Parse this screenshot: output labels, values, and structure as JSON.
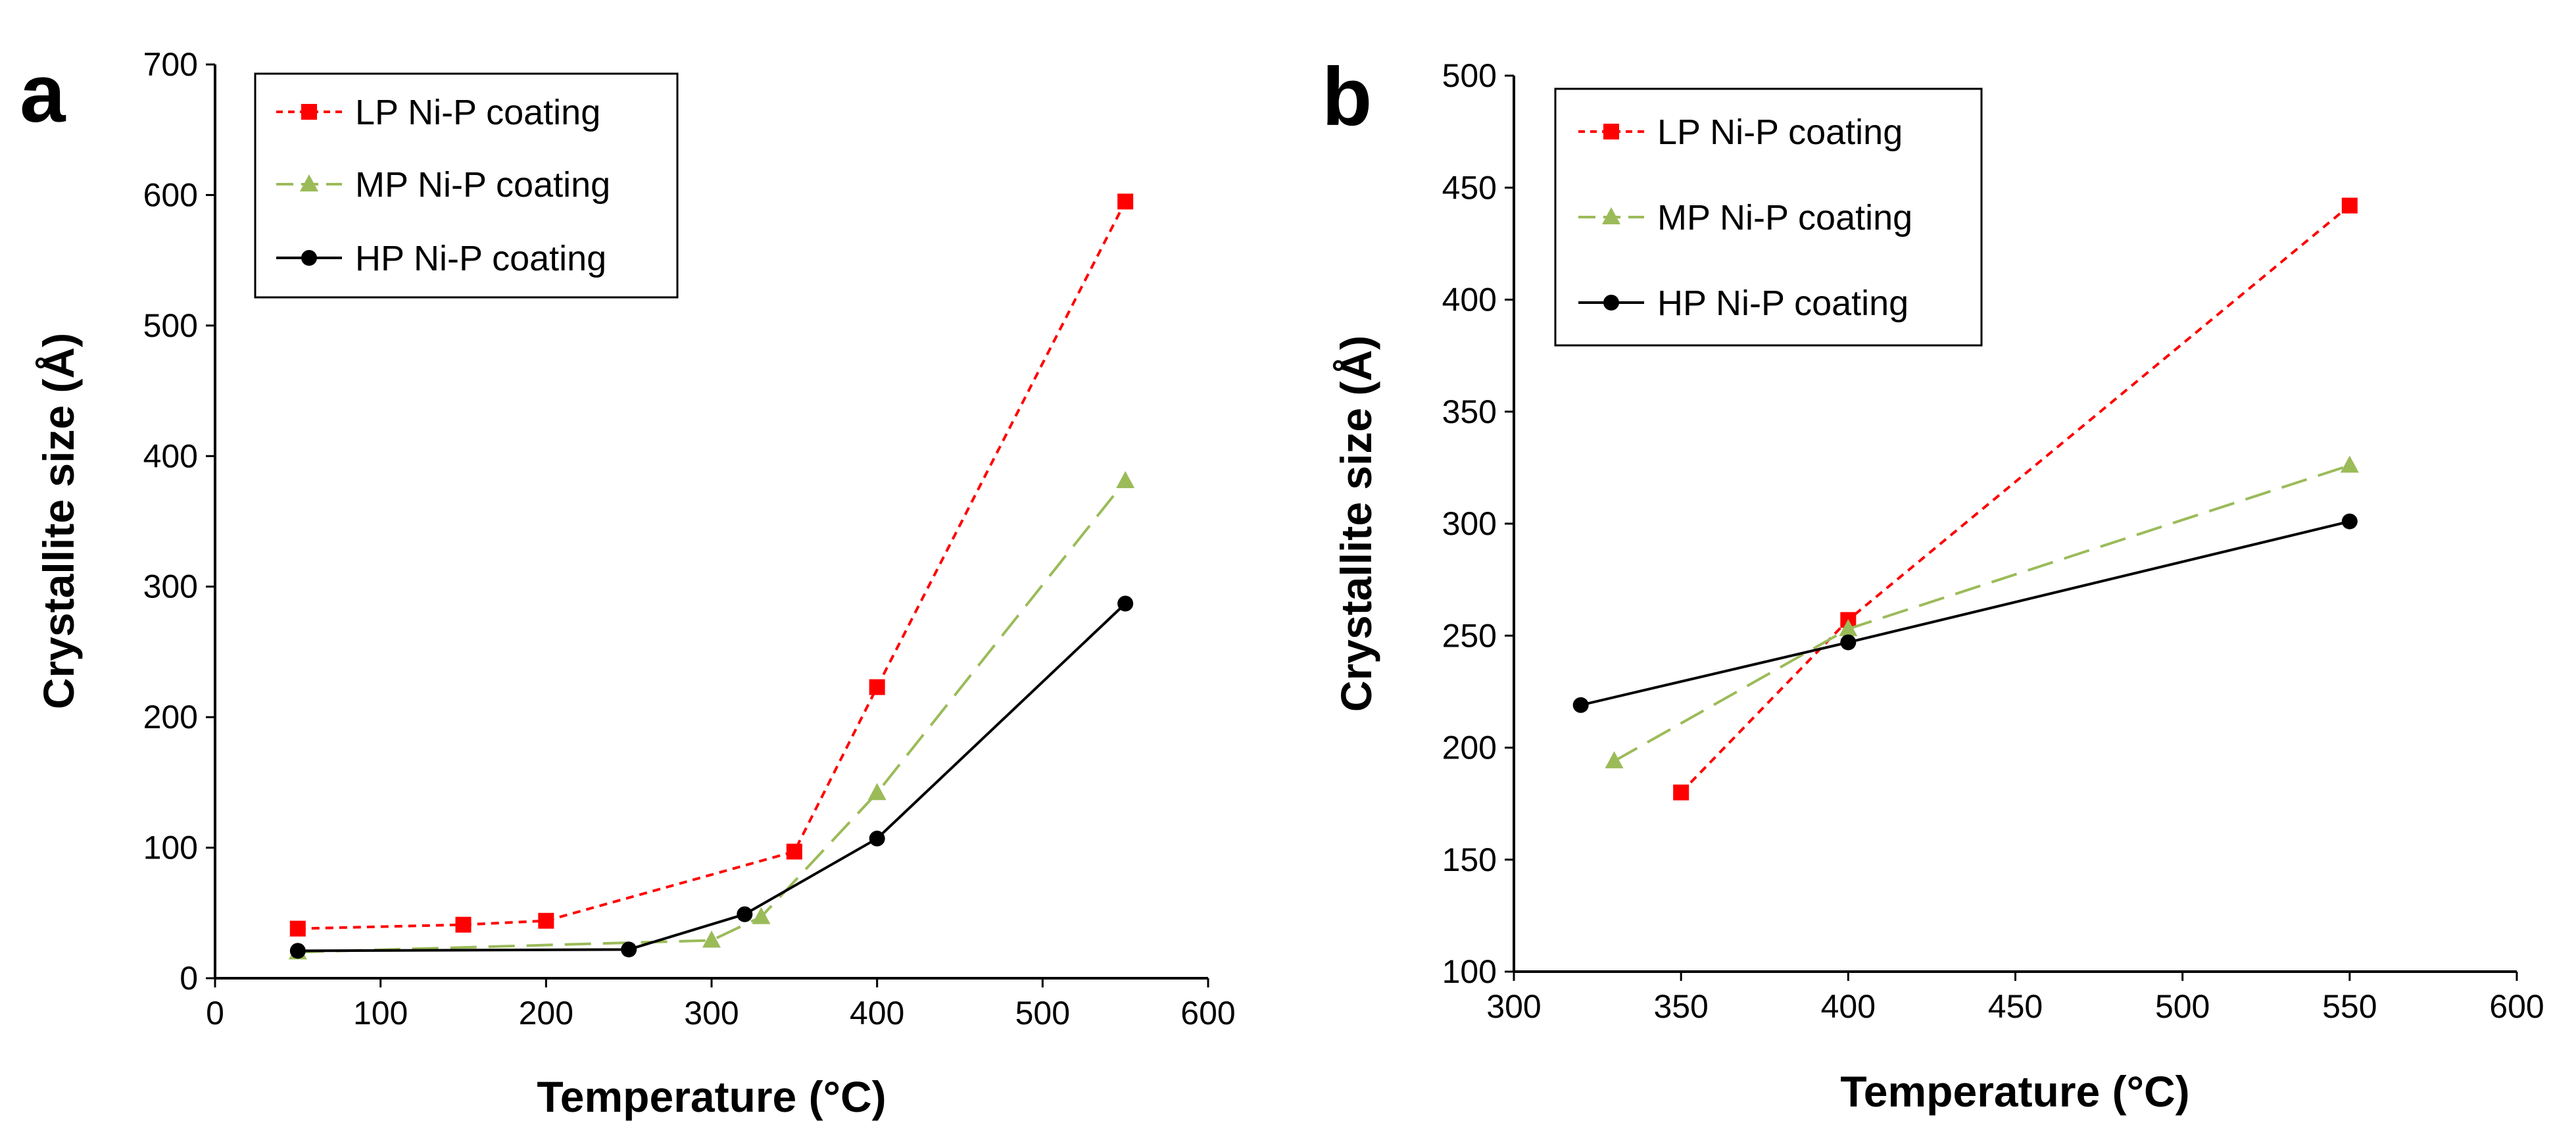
{
  "chart_data": [
    {
      "panel": "a",
      "type": "line",
      "xlabel": "Temperature (°C)",
      "ylabel": "Crystallite size (Å)",
      "xlim": [
        0,
        600
      ],
      "ylim": [
        0,
        700
      ],
      "xticks": [
        0,
        100,
        200,
        300,
        400,
        500,
        600
      ],
      "yticks": [
        0,
        100,
        200,
        300,
        400,
        500,
        600,
        700
      ],
      "legend_position": "top-left",
      "series": [
        {
          "name": "LP Ni-P coating",
          "color": "#FF0000",
          "marker": "square",
          "dash": "dotted",
          "x": [
            50,
            150,
            200,
            350,
            400,
            550
          ],
          "y": [
            38,
            41,
            44,
            97,
            223,
            595
          ]
        },
        {
          "name": "MP Ni-P coating",
          "color": "#9BBB59",
          "marker": "triangle",
          "dash": "dashed",
          "x": [
            50,
            300,
            330,
            400,
            550
          ],
          "y": [
            20,
            29,
            47,
            142,
            381
          ]
        },
        {
          "name": "HP Ni-P coating",
          "color": "#000000",
          "marker": "circle",
          "dash": "solid",
          "x": [
            50,
            250,
            320,
            400,
            550
          ],
          "y": [
            21,
            22,
            49,
            107,
            287
          ]
        }
      ]
    },
    {
      "panel": "b",
      "type": "line",
      "xlabel": "Temperature (°C)",
      "ylabel": "Crystallite size (Å)",
      "xlim": [
        300,
        600
      ],
      "ylim": [
        100,
        500
      ],
      "xticks": [
        300,
        350,
        400,
        450,
        500,
        550,
        600
      ],
      "yticks": [
        100,
        150,
        200,
        250,
        300,
        350,
        400,
        450,
        500
      ],
      "legend_position": "top-left",
      "series": [
        {
          "name": "LP Ni-P coating",
          "color": "#FF0000",
          "marker": "square",
          "dash": "dotted",
          "x": [
            350,
            400,
            550
          ],
          "y": [
            180,
            257,
            442
          ]
        },
        {
          "name": "MP Ni-P coating",
          "color": "#9BBB59",
          "marker": "triangle",
          "dash": "dashed",
          "x": [
            330,
            400,
            550
          ],
          "y": [
            194,
            253,
            326
          ]
        },
        {
          "name": "HP Ni-P coating",
          "color": "#000000",
          "marker": "circle",
          "dash": "solid",
          "x": [
            320,
            400,
            550
          ],
          "y": [
            219,
            247,
            301
          ]
        }
      ]
    }
  ]
}
